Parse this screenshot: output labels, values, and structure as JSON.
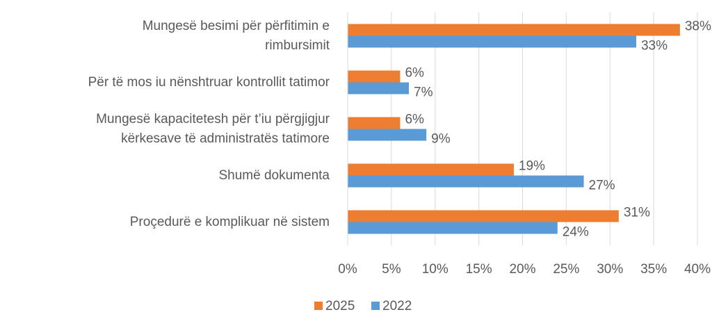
{
  "chart_data": {
    "type": "bar",
    "orientation": "horizontal",
    "categories": [
      "Mungesë besimi për përfitimin e\nrimbursimit",
      "Për të mos iu nënshtruar kontrollit tatimor",
      "Mungesë kapacitetesh për t’iu përgjigjur\nkërkesave të administratës tatimore",
      "Shumë dokumenta",
      "Proçedurë e komplikuar në sistem"
    ],
    "series": [
      {
        "name": "2025",
        "color": "#ed7d31",
        "values": [
          38,
          6,
          6,
          19,
          31
        ],
        "value_labels": [
          "38%",
          "6%",
          "6%",
          "19%",
          "31%"
        ]
      },
      {
        "name": "2022",
        "color": "#5b9bd5",
        "values": [
          33,
          7,
          9,
          27,
          24
        ],
        "value_labels": [
          "33%",
          "7%",
          "9%",
          "27%",
          "24%"
        ]
      }
    ],
    "xlim": [
      0,
      40
    ],
    "xticks": [
      {
        "value": 0,
        "label": "0%"
      },
      {
        "value": 5,
        "label": "5%"
      },
      {
        "value": 10,
        "label": "10%"
      },
      {
        "value": 15,
        "label": "15%"
      },
      {
        "value": 20,
        "label": "20%"
      },
      {
        "value": 25,
        "label": "25%"
      },
      {
        "value": 30,
        "label": "30%"
      },
      {
        "value": 35,
        "label": "35%"
      },
      {
        "value": 40,
        "label": "40%"
      }
    ],
    "grid": true,
    "legend": "bottom"
  }
}
